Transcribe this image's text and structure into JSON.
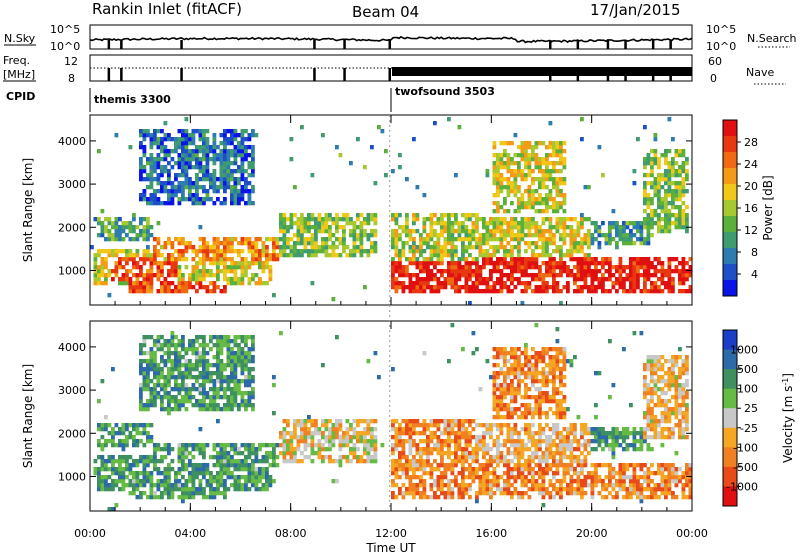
{
  "header": {
    "title": "Rankin Inlet (fitACF)",
    "beam": "Beam 04",
    "date": "17/Jan/2015"
  },
  "status_panels": {
    "nsky_label": "N.Sky",
    "nsearch_label": "N.Search",
    "nsky_ticks": [
      "10^5",
      "10^0"
    ],
    "nsearch_ticks": [
      "10^5",
      "10^0"
    ],
    "freq_label_1": "Freq.",
    "freq_label_2": "[MHz]",
    "freq_ticks": [
      "12",
      "8"
    ],
    "nave_label": "Nave",
    "nave_ticks": [
      "60",
      "0"
    ],
    "cpid_label": "CPID",
    "cpid_modes": [
      {
        "name": "themis 3300",
        "start_hour": 0.0
      },
      {
        "name": "twofsound 3503",
        "start_hour": 11.95
      }
    ]
  },
  "chart_data": [
    {
      "type": "heatmap",
      "name": "power",
      "ylabel": "Slant Range [km]",
      "ylim": [
        200,
        4600
      ],
      "yticks": [
        "1000",
        "2000",
        "3000",
        "4000"
      ],
      "xlim": [
        0,
        24
      ],
      "xticks": [
        "00:00",
        "04:00",
        "08:00",
        "12:00",
        "16:00",
        "20:00",
        "00:00"
      ],
      "colorbar": {
        "label": "Power [dB]",
        "ticks": [
          "4",
          "8",
          "12",
          "16",
          "20",
          "24",
          "28"
        ],
        "colors": [
          "#0a14e6",
          "#1c4fc8",
          "#2d7bb0",
          "#3f9b70",
          "#5bb03c",
          "#a8c830",
          "#f0c818",
          "#f59a16",
          "#f06a12",
          "#e83810",
          "#e01010"
        ]
      },
      "echo_regions": [
        {
          "t0": 0.2,
          "t1": 7.2,
          "r0": 700,
          "r1": 1500,
          "level": 0.55
        },
        {
          "t0": 0.8,
          "t1": 3.5,
          "r0": 800,
          "r1": 1300,
          "level": 0.85
        },
        {
          "t0": 2.5,
          "t1": 7.5,
          "r0": 1250,
          "r1": 1750,
          "level": 0.7
        },
        {
          "t0": 1.5,
          "t1": 5.5,
          "r0": 500,
          "r1": 800,
          "level": 0.85
        },
        {
          "t0": 0.3,
          "t1": 2.5,
          "r0": 1700,
          "r1": 2200,
          "level": 0.35
        },
        {
          "t0": 7.5,
          "t1": 11.5,
          "r0": 1300,
          "r1": 2300,
          "level": 0.45
        },
        {
          "t0": 12.0,
          "t1": 24.0,
          "r0": 500,
          "r1": 1300,
          "level": 0.95
        },
        {
          "t0": 12.0,
          "t1": 15.5,
          "r0": 1200,
          "r1": 2300,
          "level": 0.5
        },
        {
          "t0": 15.5,
          "t1": 20.0,
          "r0": 1300,
          "r1": 2200,
          "level": 0.55
        },
        {
          "t0": 20.0,
          "t1": 22.5,
          "r0": 1600,
          "r1": 2100,
          "level": 0.3
        },
        {
          "t0": 22.0,
          "t1": 23.8,
          "r0": 1900,
          "r1": 3800,
          "level": 0.45
        },
        {
          "t0": 2.0,
          "t1": 6.5,
          "r0": 2500,
          "r1": 4300,
          "level": 0.2
        },
        {
          "t0": 16.0,
          "t1": 19.0,
          "r0": 2300,
          "r1": 4000,
          "level": 0.55
        }
      ]
    },
    {
      "type": "heatmap",
      "name": "velocity",
      "ylabel": "Slant Range [km]",
      "ylim": [
        200,
        4600
      ],
      "yticks": [
        "1000",
        "2000",
        "3000",
        "4000"
      ],
      "xlim": [
        0,
        24
      ],
      "xlabel": "Time UT",
      "xticks": [
        "00:00",
        "04:00",
        "08:00",
        "12:00",
        "16:00",
        "20:00",
        "00:00"
      ],
      "colorbar": {
        "label": "Velocity [m s",
        "label_sup": "-1",
        "label_close": "]",
        "ticks": [
          "1000",
          "500",
          "100",
          "25",
          "-25",
          "-100",
          "-500",
          "-1000"
        ],
        "colors": [
          "#1a3ec8",
          "#2d6aa8",
          "#3f9060",
          "#66bb44",
          "#c8c8c8",
          "#f5a623",
          "#f08020",
          "#e84a18",
          "#e01010"
        ]
      },
      "echo_regions": [
        {
          "t0": 0.2,
          "t1": 7.2,
          "r0": 700,
          "r1": 1500,
          "level": 0.35
        },
        {
          "t0": 2.5,
          "t1": 7.5,
          "r0": 1250,
          "r1": 1750,
          "level": 0.3
        },
        {
          "t0": 1.5,
          "t1": 5.5,
          "r0": 500,
          "r1": 800,
          "level": 0.3
        },
        {
          "t0": 0.3,
          "t1": 2.5,
          "r0": 1700,
          "r1": 2200,
          "level": 0.3
        },
        {
          "t0": 7.5,
          "t1": 11.5,
          "r0": 1300,
          "r1": 2300,
          "level": 0.55
        },
        {
          "t0": 12.0,
          "t1": 24.0,
          "r0": 500,
          "r1": 1300,
          "level": 0.7
        },
        {
          "t0": 12.0,
          "t1": 15.5,
          "r0": 1200,
          "r1": 2300,
          "level": 0.68
        },
        {
          "t0": 15.5,
          "t1": 20.0,
          "r0": 1300,
          "r1": 2200,
          "level": 0.62
        },
        {
          "t0": 20.0,
          "t1": 22.5,
          "r0": 1600,
          "r1": 2100,
          "level": 0.45
        },
        {
          "t0": 22.0,
          "t1": 23.8,
          "r0": 1900,
          "r1": 3800,
          "level": 0.6
        },
        {
          "t0": 2.0,
          "t1": 6.5,
          "r0": 2500,
          "r1": 4300,
          "level": 0.25
        },
        {
          "t0": 16.0,
          "t1": 19.0,
          "r0": 2300,
          "r1": 4000,
          "level": 0.7
        }
      ]
    }
  ]
}
